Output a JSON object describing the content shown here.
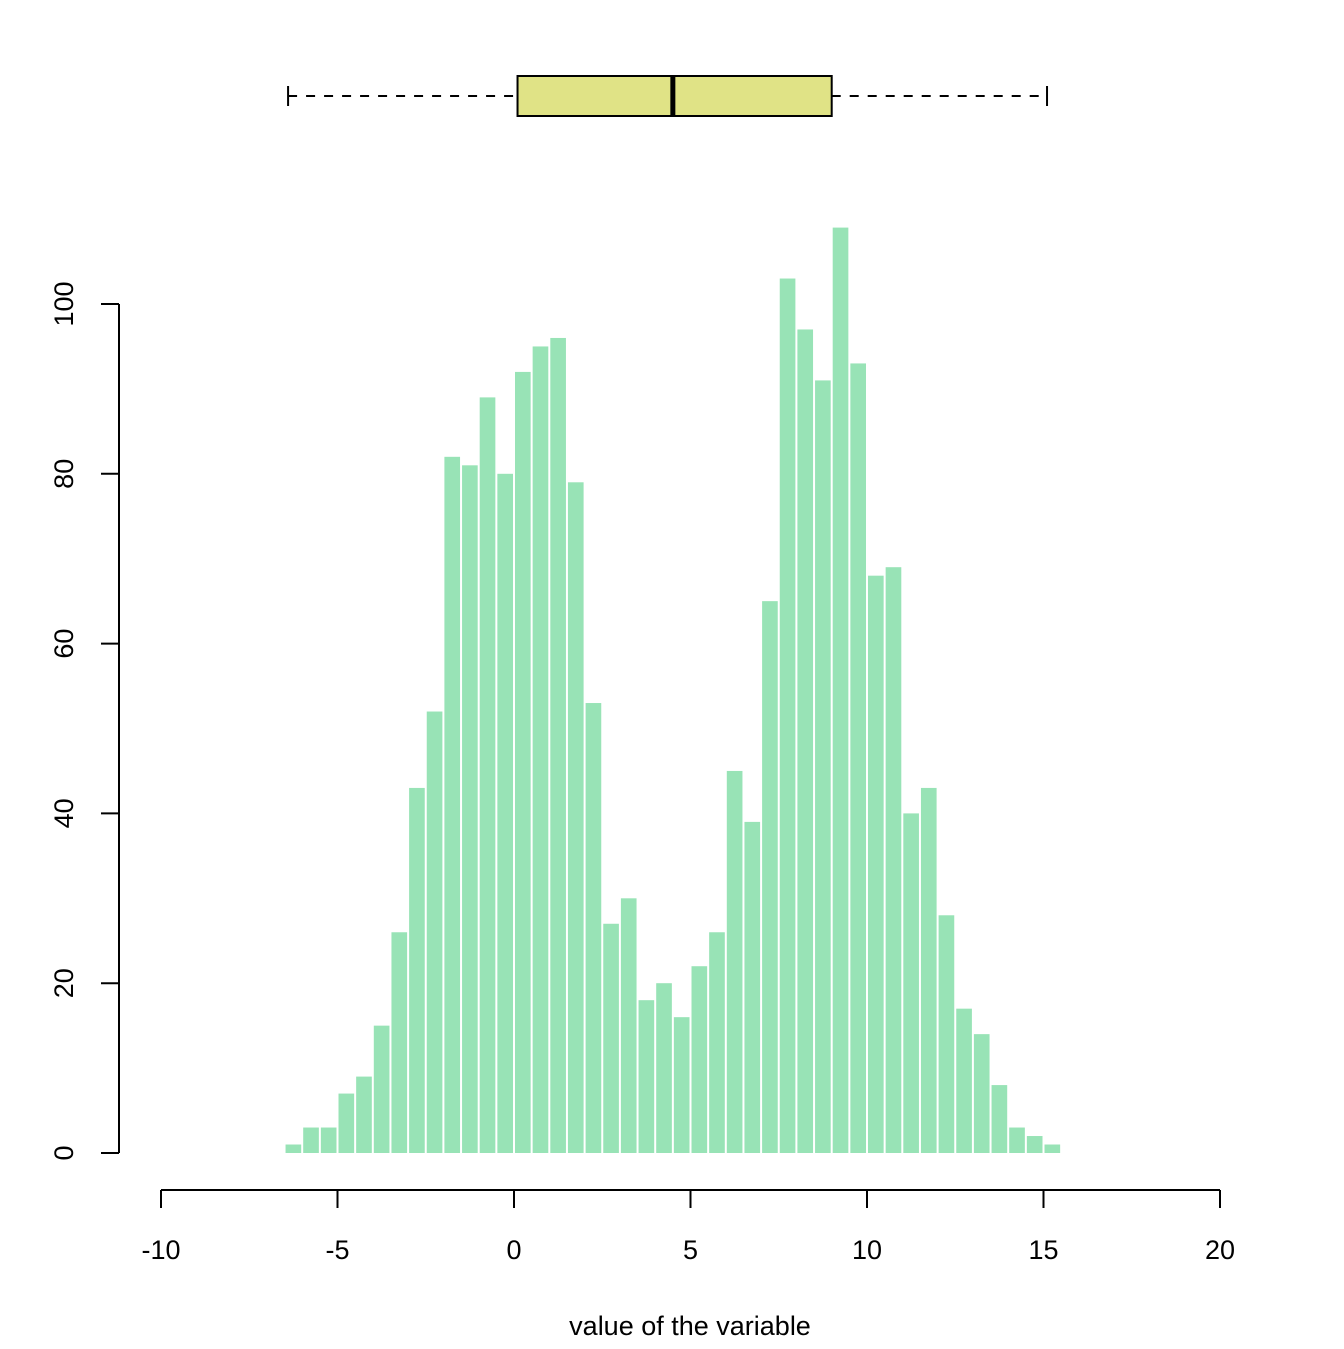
{
  "chart_data": {
    "type": "bar",
    "subtype": "histogram-with-boxplot",
    "title": "",
    "xlabel": "value of the variable",
    "ylabel": "",
    "xlim": [
      -10,
      20
    ],
    "ylim": [
      0,
      100
    ],
    "x_ticks": [
      "-10",
      "-5",
      "0",
      "5",
      "10",
      "15",
      "20"
    ],
    "y_ticks": [
      "0",
      "20",
      "40",
      "60",
      "80",
      "100"
    ],
    "bin_width": 0.5,
    "bin_start": -6.5,
    "values": [
      1,
      3,
      3,
      7,
      9,
      15,
      26,
      43,
      52,
      82,
      81,
      89,
      80,
      92,
      95,
      96,
      79,
      53,
      27,
      30,
      18,
      20,
      16,
      22,
      26,
      45,
      39,
      65,
      103,
      97,
      91,
      109,
      93,
      68,
      69,
      40,
      43,
      28,
      17,
      14,
      8,
      3,
      2,
      1
    ],
    "bar_color": "#98e3b6",
    "grid": false,
    "boxplot": {
      "min": -6.4,
      "q1": 0.1,
      "median": 4.5,
      "q3": 9.0,
      "max": 15.1,
      "fill_color": "#e0e386"
    }
  }
}
